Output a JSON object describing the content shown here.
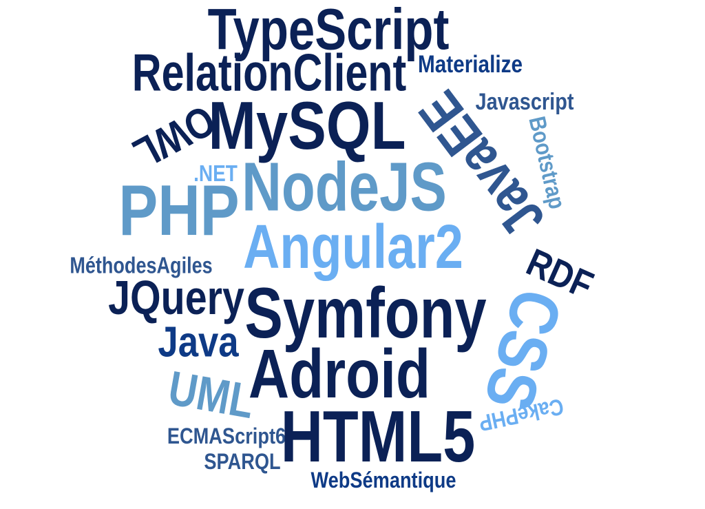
{
  "colors": {
    "navy": "#0b2156",
    "blue": "#0e3a86",
    "slate": "#2f5690",
    "steel": "#5f9ac8",
    "sky": "#6aaef2",
    "background": "#ffffff"
  },
  "words": [
    {
      "text": "TypeScript",
      "color": "#0b2156",
      "rotation": 0
    },
    {
      "text": "RelationClient",
      "color": "#0b2156",
      "rotation": 0
    },
    {
      "text": "Materialize",
      "color": "#0e3a86",
      "rotation": 0
    },
    {
      "text": "MySQL",
      "color": "#0b2156",
      "rotation": 0
    },
    {
      "text": "JavaEE",
      "color": "#2f5690",
      "rotation": 180
    },
    {
      "text": "Javascript",
      "color": "#2f5690",
      "rotation": 0
    },
    {
      "text": "Bootstrap",
      "color": "#5f9ac8",
      "rotation": 90
    },
    {
      "text": "OWL",
      "color": "#0b2156",
      "rotation": 180
    },
    {
      "text": ".NET",
      "color": "#6aaef2",
      "rotation": 0
    },
    {
      "text": "NodeJS",
      "color": "#5f9ac8",
      "rotation": 0
    },
    {
      "text": "PHP",
      "color": "#5f9ac8",
      "rotation": 0
    },
    {
      "text": "Angular2",
      "color": "#6aaef2",
      "rotation": 0
    },
    {
      "text": "RDF",
      "color": "#0b2156",
      "rotation": 0
    },
    {
      "text": "MéthodesAgiles",
      "color": "#2f5690",
      "rotation": 0
    },
    {
      "text": "JQuery",
      "color": "#0b2156",
      "rotation": 0
    },
    {
      "text": "Symfony",
      "color": "#0b2156",
      "rotation": 0
    },
    {
      "text": "CSS",
      "color": "#6aaef2",
      "rotation": 90
    },
    {
      "text": "Java",
      "color": "#0e3a86",
      "rotation": 0
    },
    {
      "text": "Adroid",
      "color": "#0b2156",
      "rotation": 0
    },
    {
      "text": "UML",
      "color": "#5f9ac8",
      "rotation": 0
    },
    {
      "text": "CakePHP",
      "color": "#6aaef2",
      "rotation": 180
    },
    {
      "text": "ECMAScript6",
      "color": "#2f5690",
      "rotation": 0
    },
    {
      "text": "HTML5",
      "color": "#0b2156",
      "rotation": 0
    },
    {
      "text": "SPARQL",
      "color": "#2f5690",
      "rotation": 0
    },
    {
      "text": "WebSémantique",
      "color": "#0e3a86",
      "rotation": 0
    }
  ]
}
